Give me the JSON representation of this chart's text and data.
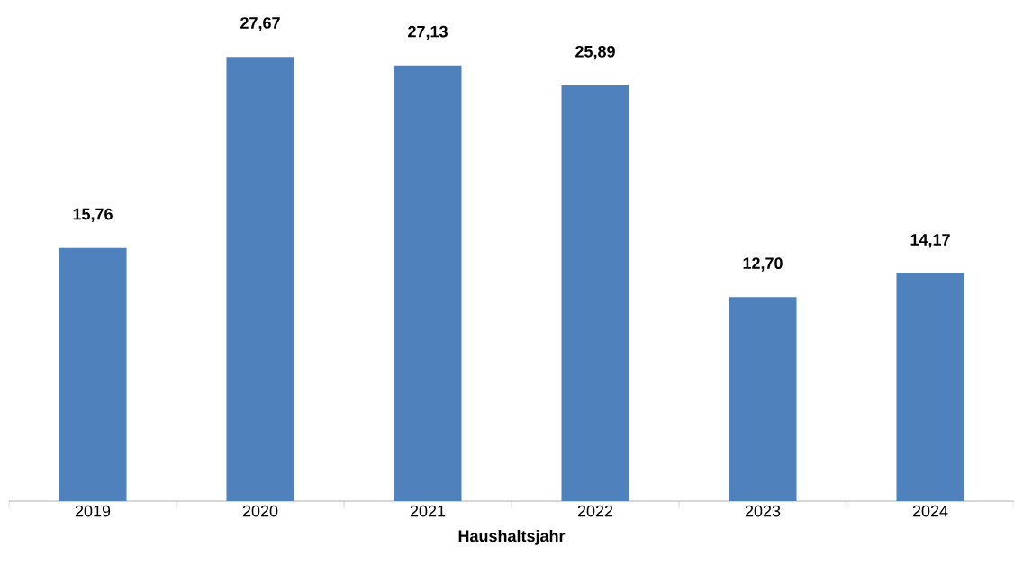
{
  "chart_data": {
    "type": "bar",
    "xlabel": "Haushaltsjahr",
    "categories": [
      "2019",
      "2020",
      "2021",
      "2022",
      "2023",
      "2024"
    ],
    "values": [
      15.76,
      27.67,
      27.13,
      25.89,
      12.7,
      14.17
    ],
    "value_labels": [
      "15,76",
      "27,67",
      "27,13",
      "25,89",
      "12,70",
      "14,17"
    ],
    "color": "#4f81bd"
  }
}
